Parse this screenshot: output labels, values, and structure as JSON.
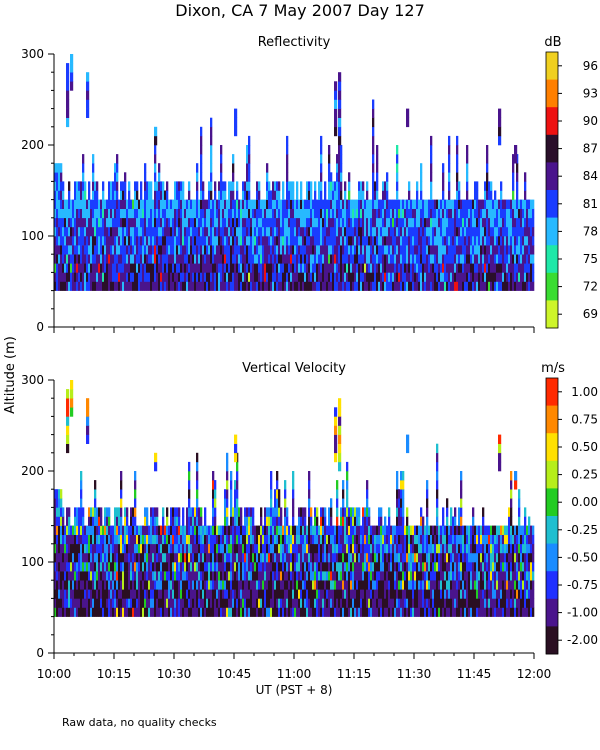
{
  "title": "Dixon, CA  7 May 2007  Day 127",
  "footnote": "Raw data, no quality checks",
  "shared_ylabel": "Altitude (m)",
  "shared_xlabel": "UT  (PST + 8)",
  "chart_data": [
    {
      "type": "heatmap",
      "title": "Reflectivity",
      "colorbar_label": "dB",
      "colorbar_ticks": [
        "96",
        "93",
        "90",
        "87",
        "84",
        "81",
        "78",
        "75",
        "72",
        "69"
      ],
      "colorbar_colors": [
        "#f0d020",
        "#ff7f00",
        "#ee1111",
        "#2a0f2a",
        "#4a148c",
        "#1a3cff",
        "#27b9ff",
        "#1fe8a8",
        "#3adc32",
        "#cdf52a"
      ],
      "x_ticks": [
        "10:00",
        "10:15",
        "10:30",
        "10:45",
        "11:00",
        "11:15",
        "11:30",
        "11:45",
        "12:00"
      ],
      "x_range_minutes_after_10UT": [
        0,
        120
      ],
      "y_ticks": [
        "0",
        "100",
        "200",
        "300"
      ],
      "ylim": [
        0,
        300
      ],
      "echo_base_m": 40,
      "typical_echo_top_m": 140,
      "max_echo_top_m": 300
    },
    {
      "type": "heatmap",
      "title": "Vertical Velocity",
      "colorbar_label": "m/s",
      "colorbar_ticks": [
        "1.00",
        "0.75",
        "0.50",
        "0.25",
        "0.00",
        "-0.25",
        "-0.50",
        "-0.75",
        "-1.00",
        "-2.00"
      ],
      "colorbar_colors": [
        "#ff2a00",
        "#ff8800",
        "#ffe000",
        "#b6ee1a",
        "#22cc22",
        "#1fbfd0",
        "#1a8cff",
        "#2030ff",
        "#4a148c",
        "#2a0f22"
      ],
      "x_ticks": [
        "10:00",
        "10:15",
        "10:30",
        "10:45",
        "11:00",
        "11:15",
        "11:30",
        "11:45",
        "12:00"
      ],
      "x_range_minutes_after_10UT": [
        0,
        120
      ],
      "y_ticks": [
        "0",
        "100",
        "200",
        "300"
      ],
      "ylim": [
        0,
        300
      ],
      "echo_base_m": 40,
      "typical_echo_top_m": 140,
      "max_echo_top_m": 300
    }
  ]
}
